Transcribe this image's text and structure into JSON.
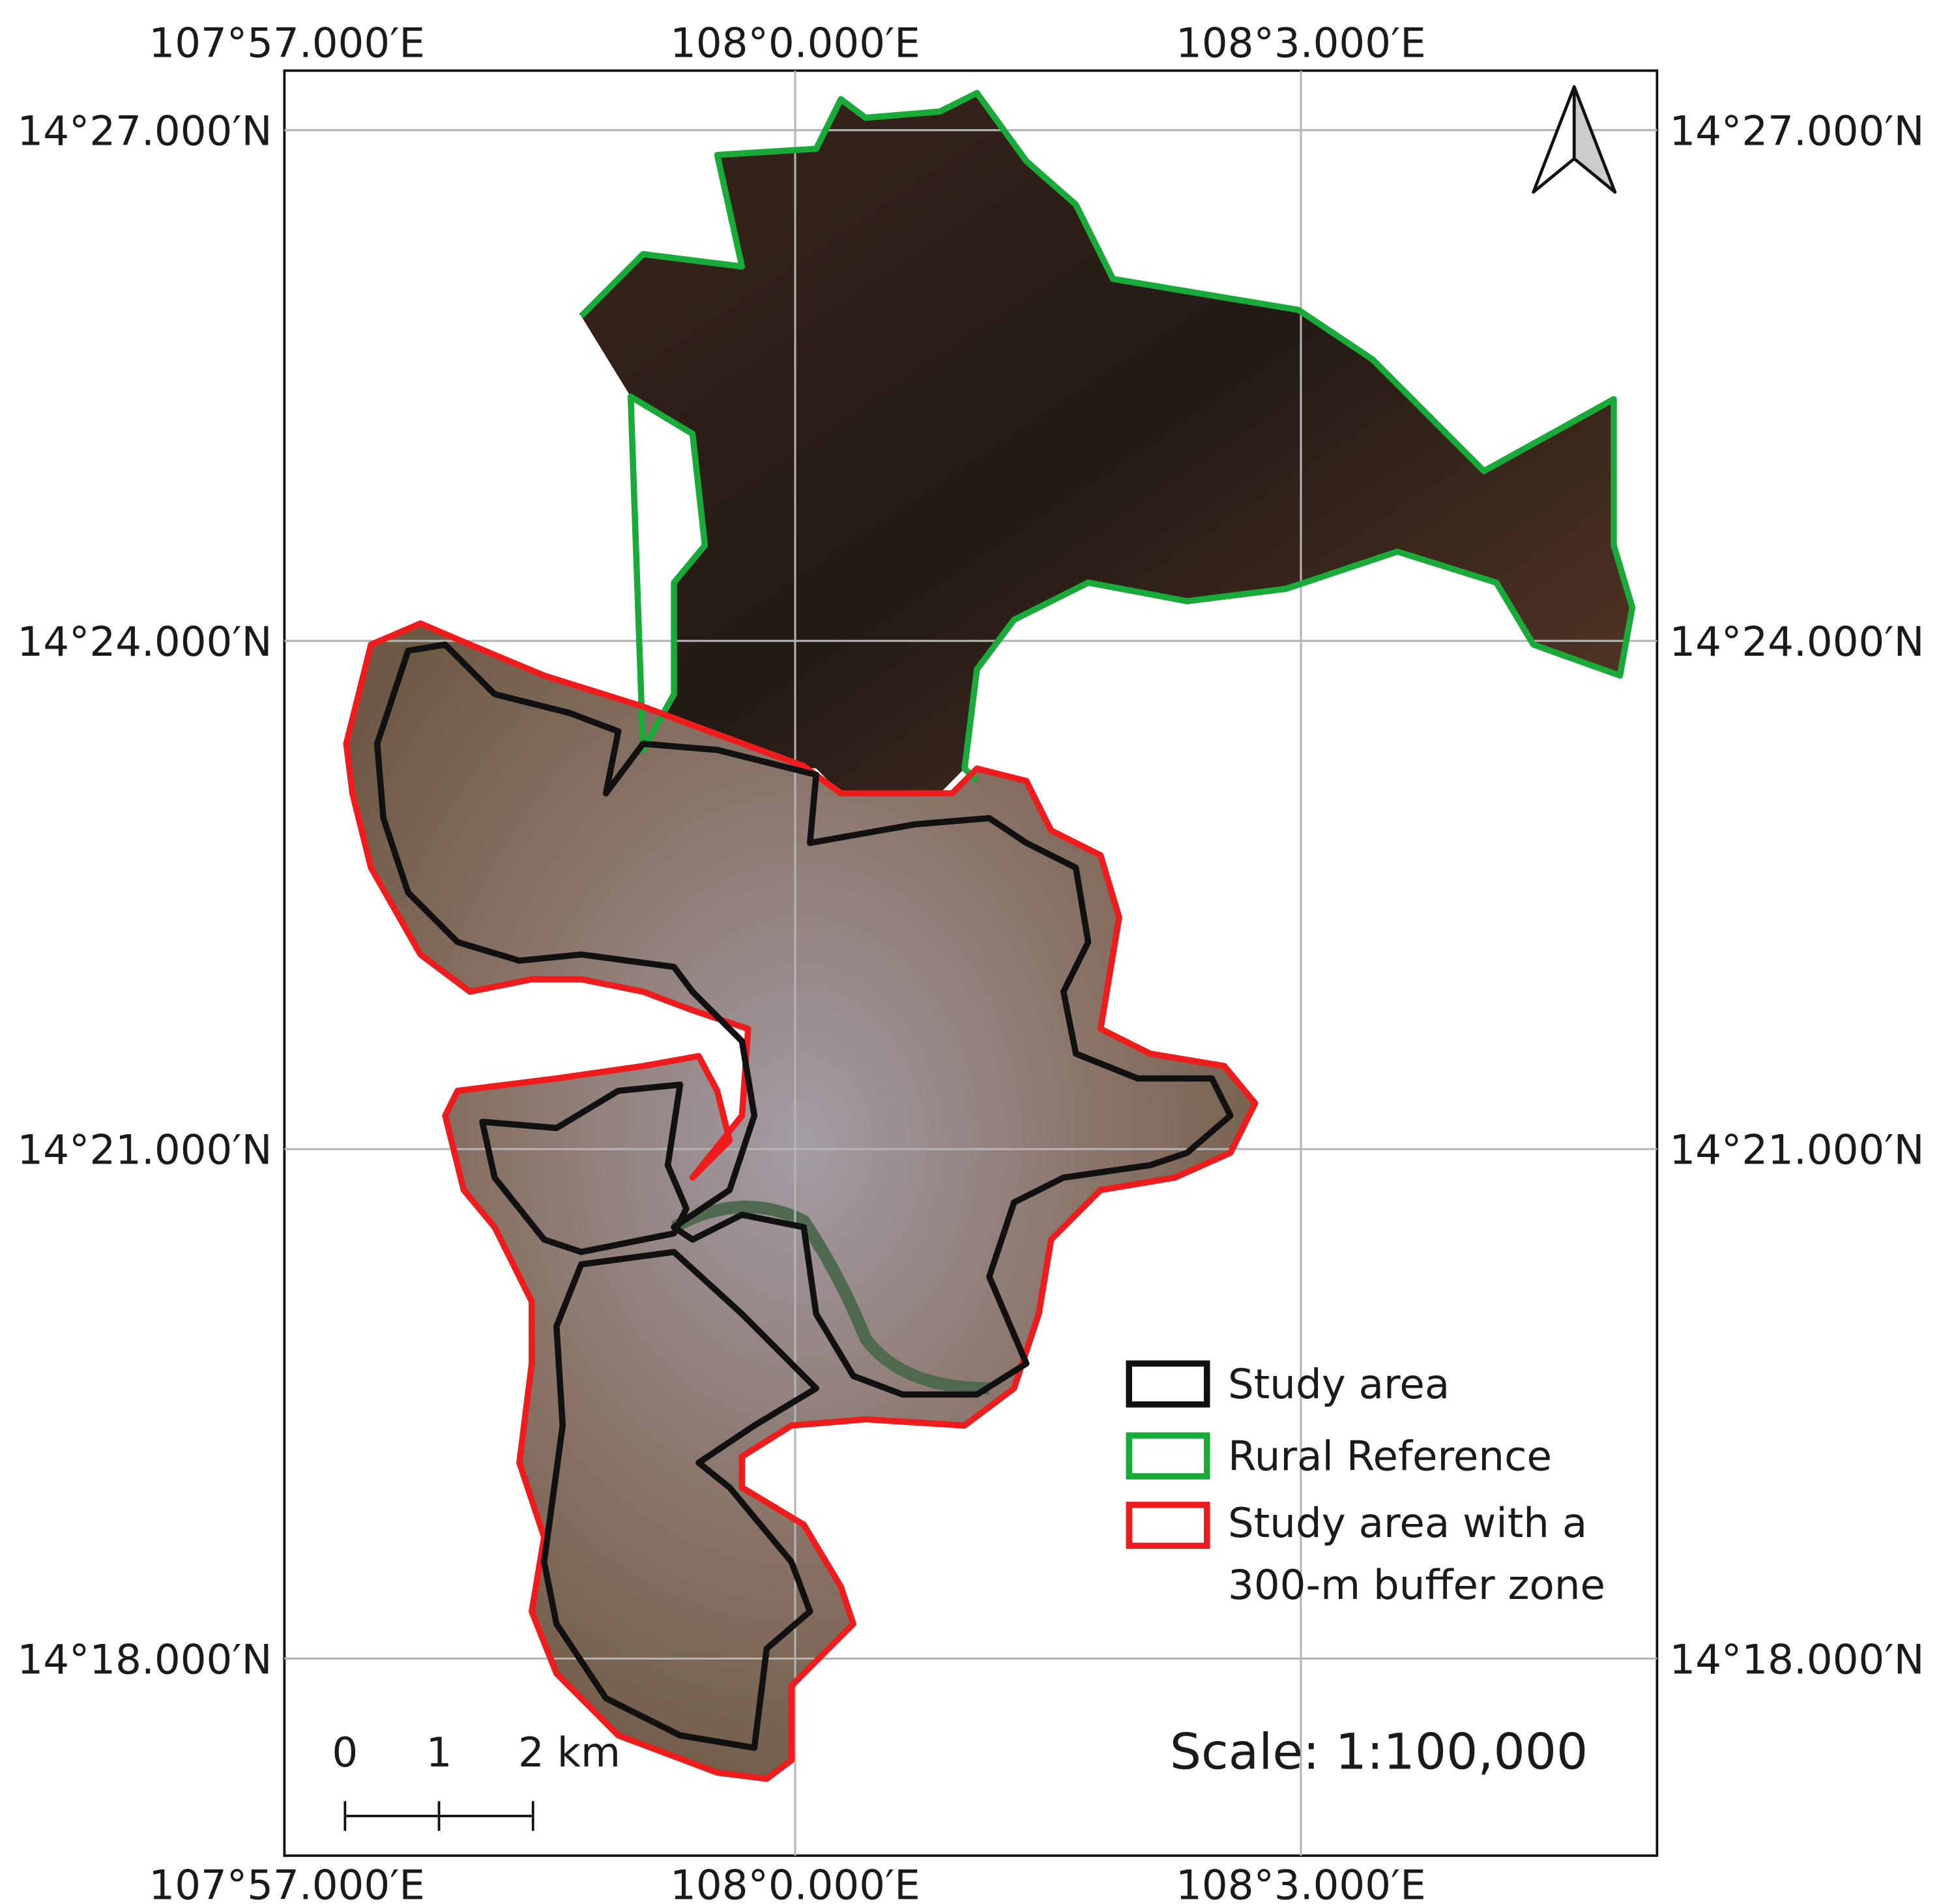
{
  "map": {
    "longitude_labels": [
      "107°57.000′E",
      "108°0.000′E",
      "108°3.000′E"
    ],
    "latitude_labels": [
      "14°27.000′N",
      "14°24.000′N",
      "14°21.000′N",
      "14°18.000′N"
    ],
    "legend": [
      {
        "label": "Study area"
      },
      {
        "label": "Rural Reference"
      },
      {
        "label_lines": [
          "Study area with a",
          "300-m buffer zone"
        ]
      }
    ],
    "scale_bar_labels": [
      "0",
      "1",
      "2 km"
    ],
    "scale_text": "Scale: 1:100,000"
  }
}
